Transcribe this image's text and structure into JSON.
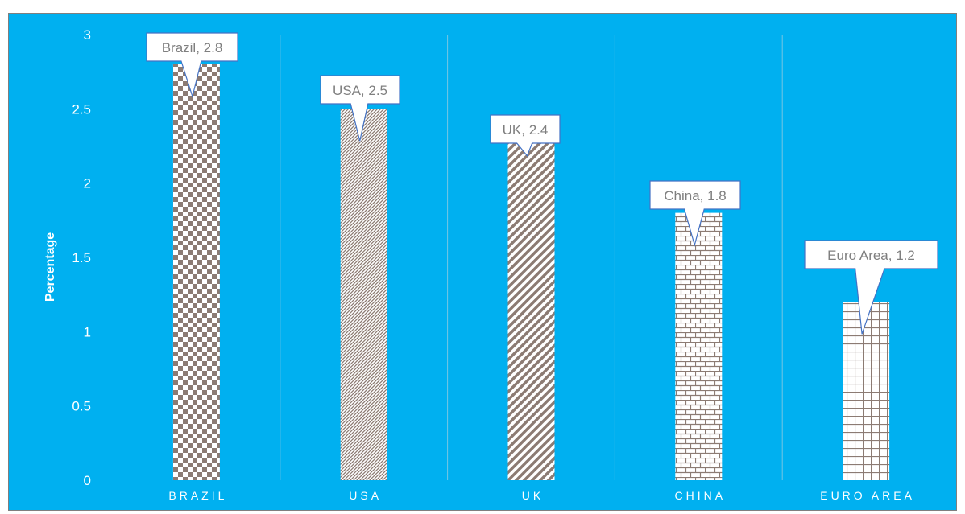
{
  "chart_data": {
    "type": "bar",
    "title": "",
    "xlabel": "",
    "ylabel": "Percentage",
    "ylim": [
      0,
      3
    ],
    "yticks": [
      0,
      0.5,
      1,
      1.5,
      2,
      2.5,
      3
    ],
    "grid": true,
    "categories": [
      "BRAZIL",
      "USA",
      "UK",
      "CHINA",
      "EURO AREA"
    ],
    "values": [
      2.8,
      2.5,
      2.4,
      1.8,
      1.2
    ],
    "data_labels": [
      "Brazil, 2.8",
      "USA, 2.5",
      "UK, 2.4",
      "China, 1.8",
      "Euro Area, 1.2"
    ],
    "patterns": [
      "checkerboard",
      "fine-diagonal",
      "wide-diagonal",
      "brick",
      "grid"
    ],
    "colors": {
      "background": "#00b0f0",
      "bar_pattern": "#8c7b73",
      "callout_border": "#4472c4",
      "callout_text": "#7f7f7f",
      "axis_text": "#ffffff"
    }
  }
}
